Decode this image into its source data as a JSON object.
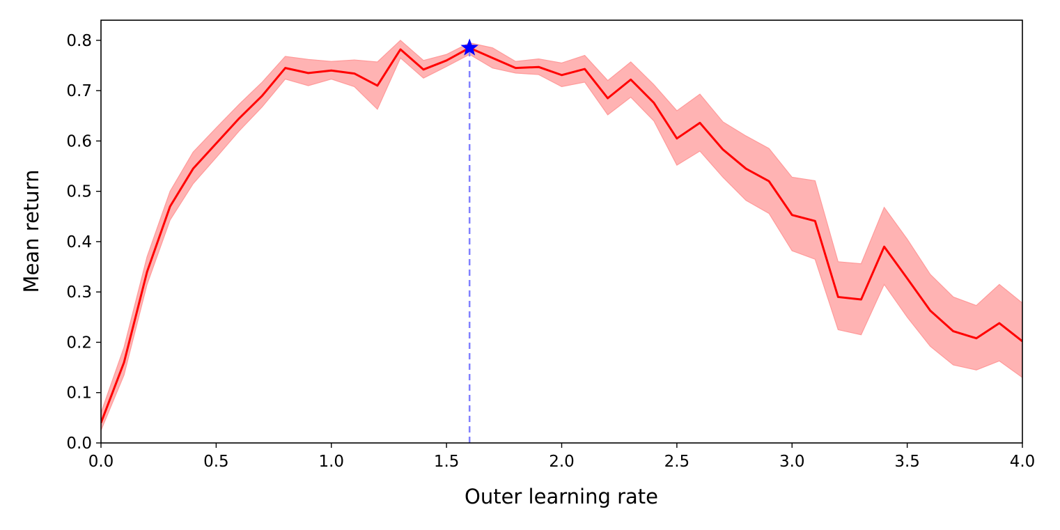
{
  "chart_data": {
    "type": "line",
    "title": "",
    "xlabel": "Outer learning rate",
    "ylabel": "Mean return",
    "xlim": [
      0.0,
      4.0
    ],
    "ylim": [
      0.0,
      0.84
    ],
    "grid": false,
    "xticks": [
      0.0,
      0.5,
      1.0,
      1.5,
      2.0,
      2.5,
      3.0,
      3.5,
      4.0
    ],
    "xtick_labels": [
      "0.0",
      "0.5",
      "1.0",
      "1.5",
      "2.0",
      "2.5",
      "3.0",
      "3.5",
      "4.0"
    ],
    "yticks": [
      0.0,
      0.1,
      0.2,
      0.3,
      0.4,
      0.5,
      0.6,
      0.7,
      0.8
    ],
    "ytick_labels": [
      "0.0",
      "0.1",
      "0.2",
      "0.3",
      "0.4",
      "0.5",
      "0.6",
      "0.7",
      "0.8"
    ],
    "series": [
      {
        "name": "mean return",
        "color": "#ff0000",
        "band_color": "#ffb3b3",
        "x": [
          0.0,
          0.1,
          0.2,
          0.3,
          0.4,
          0.5,
          0.6,
          0.7,
          0.8,
          0.9,
          1.0,
          1.1,
          1.2,
          1.3,
          1.4,
          1.5,
          1.6,
          1.7,
          1.8,
          1.9,
          2.0,
          2.1,
          2.2,
          2.3,
          2.4,
          2.5,
          2.6,
          2.7,
          2.8,
          2.9,
          3.0,
          3.1,
          3.2,
          3.3,
          3.4,
          3.5,
          3.6,
          3.7,
          3.8,
          3.9,
          4.0
        ],
        "y": [
          0.04,
          0.16,
          0.34,
          0.47,
          0.545,
          0.595,
          0.645,
          0.69,
          0.745,
          0.735,
          0.74,
          0.734,
          0.71,
          0.782,
          0.742,
          0.76,
          0.785,
          0.765,
          0.745,
          0.747,
          0.731,
          0.743,
          0.685,
          0.722,
          0.676,
          0.605,
          0.636,
          0.583,
          0.545,
          0.52,
          0.453,
          0.441,
          0.29,
          0.285,
          0.39,
          0.327,
          0.263,
          0.222,
          0.208,
          0.238,
          0.202
        ],
        "lower": [
          0.025,
          0.135,
          0.315,
          0.443,
          0.515,
          0.567,
          0.62,
          0.668,
          0.723,
          0.71,
          0.723,
          0.708,
          0.663,
          0.765,
          0.725,
          0.748,
          0.772,
          0.745,
          0.735,
          0.732,
          0.708,
          0.717,
          0.652,
          0.687,
          0.64,
          0.552,
          0.58,
          0.528,
          0.482,
          0.456,
          0.382,
          0.365,
          0.225,
          0.215,
          0.315,
          0.25,
          0.192,
          0.155,
          0.145,
          0.163,
          0.13
        ],
        "upper": [
          0.06,
          0.19,
          0.37,
          0.5,
          0.578,
          0.626,
          0.673,
          0.717,
          0.768,
          0.762,
          0.758,
          0.761,
          0.757,
          0.8,
          0.76,
          0.772,
          0.795,
          0.785,
          0.758,
          0.763,
          0.755,
          0.77,
          0.72,
          0.757,
          0.712,
          0.66,
          0.693,
          0.638,
          0.61,
          0.585,
          0.528,
          0.521,
          0.36,
          0.356,
          0.468,
          0.405,
          0.335,
          0.29,
          0.273,
          0.315,
          0.278
        ]
      }
    ],
    "best_point": {
      "x": 1.6,
      "y": 0.785,
      "color": "#0000ff",
      "marker": "star",
      "guideline_color": "#8080ff"
    }
  }
}
